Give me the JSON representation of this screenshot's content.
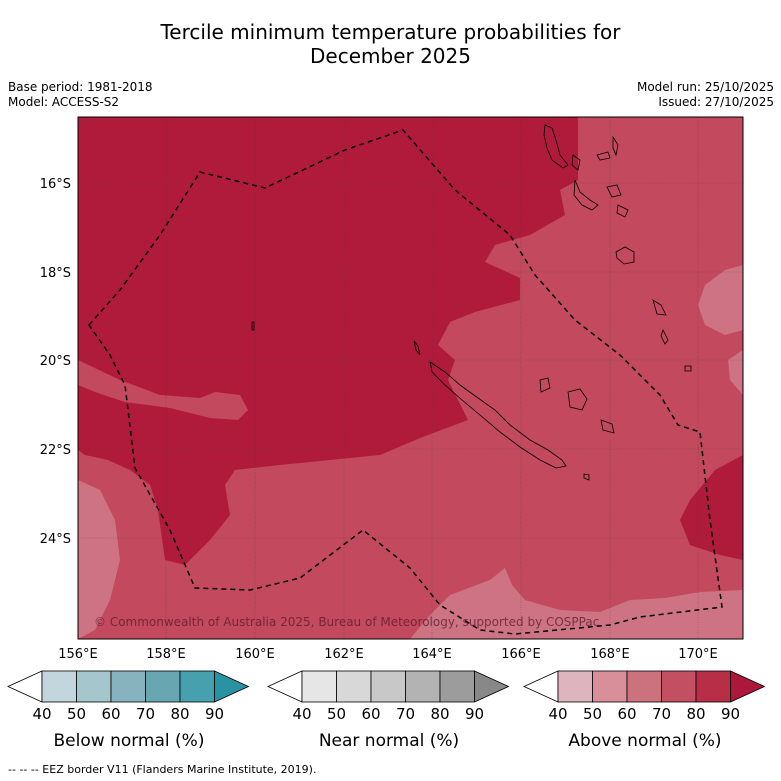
{
  "title": {
    "line1": "Tercile minimum temperature probabilities for",
    "line2": "December 2025"
  },
  "meta": {
    "base_period": "Base period: 1981-2018",
    "model": "Model: ACCESS-S2",
    "model_run": "Model run: 25/10/2025",
    "issued": "Issued: 27/10/2025"
  },
  "map": {
    "lon_ticks": [
      "156°E",
      "158°E",
      "160°E",
      "162°E",
      "164°E",
      "166°E",
      "168°E",
      "170°E"
    ],
    "lat_ticks": [
      "16°S",
      "18°S",
      "20°S",
      "22°S",
      "24°S"
    ],
    "copyright": "© Commonwealth of Australia 2025, Bureau of Meteorology, supported by COSPPac",
    "colors": {
      "above_60": "#ce7383",
      "above_70": "#c3495f",
      "above_80": "#b01b3c",
      "land_outline": "#000000",
      "eez_line": "#000000"
    }
  },
  "colorbars": [
    {
      "label": "Below normal (%)",
      "ticks": [
        "40",
        "50",
        "60",
        "70",
        "80",
        "90"
      ],
      "colors": [
        "#ffffff",
        "#c3d6dd",
        "#a5c6cc",
        "#86b3bd",
        "#68a6b2",
        "#47a0ae",
        "#2a93a3"
      ]
    },
    {
      "label": "Near normal (%)",
      "ticks": [
        "40",
        "50",
        "60",
        "70",
        "80",
        "90"
      ],
      "colors": [
        "#ffffff",
        "#e6e6e6",
        "#d8d8d8",
        "#c8c8c8",
        "#b3b3b3",
        "#9c9c9c",
        "#888888"
      ]
    },
    {
      "label": "Above normal (%)",
      "ticks": [
        "40",
        "50",
        "60",
        "70",
        "80",
        "90"
      ],
      "colors": [
        "#ffffff",
        "#deb5be",
        "#d88f9a",
        "#cc727f",
        "#c24f62",
        "#b92e47",
        "#ad173b"
      ]
    }
  ],
  "footer": "--  --  -- EEZ border V11 (Flanders Marine Institute, 2019)."
}
